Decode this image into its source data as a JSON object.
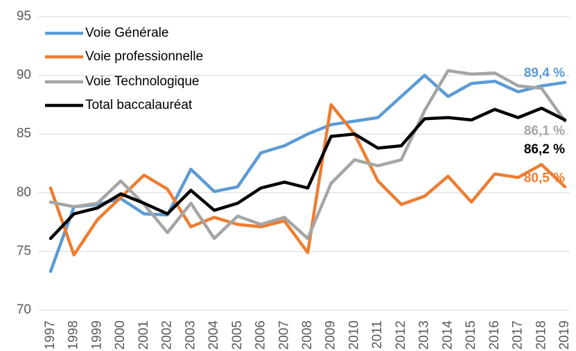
{
  "chart_data": {
    "type": "line",
    "categories": [
      "1997",
      "1998",
      "1999",
      "2000",
      "2001",
      "2002",
      "2003",
      "2004",
      "2005",
      "2006",
      "2007",
      "2008",
      "2009",
      "2010",
      "2011",
      "2012",
      "2013",
      "2014",
      "2015",
      "2016",
      "2017",
      "2018",
      "2019"
    ],
    "series": [
      {
        "name": "Voie Générale",
        "color": "#5b9bd5",
        "values": [
          73.3,
          78.8,
          79.0,
          79.5,
          78.2,
          78.1,
          82.0,
          80.1,
          80.5,
          83.4,
          84.0,
          85.0,
          85.8,
          86.1,
          86.4,
          88.2,
          90.0,
          88.2,
          89.3,
          89.5,
          88.6,
          89.1,
          89.4
        ],
        "value_labels": [
          null,
          null,
          null,
          null,
          null,
          null,
          null,
          null,
          null,
          null,
          null,
          null,
          null,
          null,
          null,
          null,
          null,
          null,
          null,
          null,
          null,
          null,
          "89,4 %"
        ]
      },
      {
        "name": "Voie professionnelle",
        "color": "#ed7d31",
        "values": [
          80.4,
          74.7,
          77.7,
          79.6,
          81.5,
          80.3,
          77.1,
          77.9,
          77.3,
          77.1,
          77.6,
          74.9,
          87.5,
          85.0,
          81.0,
          79.0,
          79.7,
          81.4,
          79.2,
          81.6,
          81.3,
          82.4,
          80.5
        ],
        "value_labels": [
          null,
          null,
          null,
          null,
          null,
          null,
          null,
          null,
          null,
          null,
          null,
          null,
          null,
          null,
          null,
          null,
          null,
          null,
          null,
          null,
          null,
          null,
          "80,5 %"
        ]
      },
      {
        "name": "Voie Technologique",
        "color": "#a5a5a5",
        "values": [
          79.2,
          78.8,
          79.1,
          81.0,
          79.0,
          76.6,
          79.1,
          76.1,
          78.0,
          77.3,
          77.9,
          76.1,
          80.8,
          82.8,
          82.3,
          82.8,
          87.0,
          90.4,
          90.1,
          90.2,
          89.1,
          88.9,
          86.1
        ],
        "value_labels": [
          null,
          null,
          null,
          null,
          null,
          null,
          null,
          null,
          null,
          null,
          null,
          null,
          null,
          null,
          null,
          null,
          null,
          null,
          null,
          null,
          null,
          null,
          "86,1 %"
        ]
      },
      {
        "name": "Total baccalauréat",
        "color": "#000000",
        "values": [
          76.1,
          78.2,
          78.7,
          79.9,
          79.1,
          78.2,
          80.2,
          78.5,
          79.1,
          80.4,
          80.9,
          80.4,
          84.8,
          85.0,
          83.8,
          84.0,
          86.3,
          86.4,
          86.2,
          87.1,
          86.4,
          87.2,
          86.2
        ],
        "value_labels": [
          null,
          null,
          null,
          null,
          null,
          null,
          null,
          null,
          null,
          null,
          null,
          null,
          null,
          null,
          null,
          null,
          null,
          null,
          null,
          null,
          null,
          null,
          "86,2 %"
        ]
      }
    ],
    "ylim": [
      70,
      95
    ],
    "yticks": [
      70,
      75,
      80,
      85,
      90,
      95
    ],
    "grid": true,
    "legend": "top-left"
  }
}
